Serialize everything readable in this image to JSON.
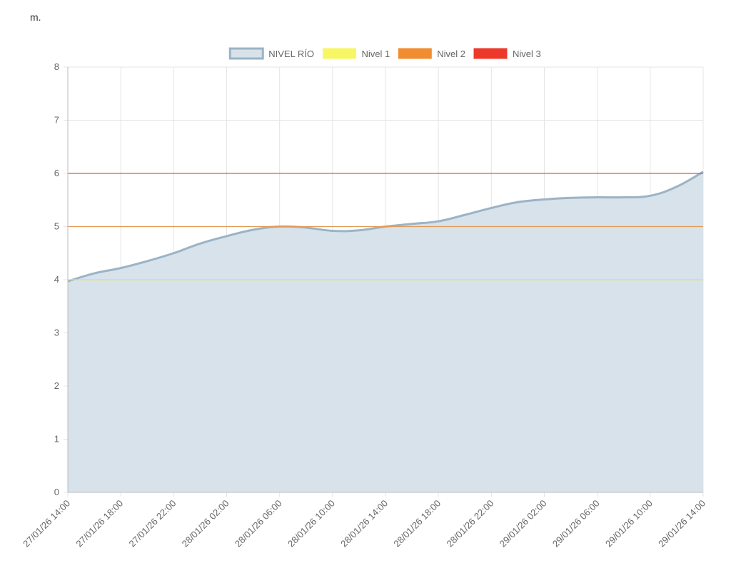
{
  "unit_label": "m.",
  "chart_data": {
    "type": "line",
    "ylim": [
      0,
      8
    ],
    "y_ticks": [
      0,
      1,
      2,
      3,
      4,
      5,
      6,
      7,
      8
    ],
    "grid": true,
    "legend_position": "top",
    "x_tick_labels": [
      "27/01/26 14:00",
      "27/01/26 18:00",
      "27/01/26 22:00",
      "28/01/26 02:00",
      "28/01/26 06:00",
      "28/01/26 10:00",
      "28/01/26 14:00",
      "28/01/26 18:00",
      "28/01/26 22:00",
      "29/01/26 02:00",
      "29/01/26 06:00",
      "29/01/26 10:00",
      "29/01/26 14:00"
    ],
    "x_hours_start": "27/01/26 14:00",
    "series": [
      {
        "name": "NIVEL RÍO",
        "kind": "area",
        "color": "#9bb3c6",
        "fill": "#d7e2ea",
        "x": [
          0,
          2,
          4,
          6,
          8,
          10,
          12,
          14,
          16,
          18,
          20,
          22,
          24,
          26,
          28,
          30,
          32,
          34,
          36,
          38,
          40,
          42,
          44,
          46,
          48
        ],
        "values": [
          3.97,
          4.12,
          4.22,
          4.35,
          4.5,
          4.68,
          4.82,
          4.94,
          5.0,
          4.98,
          4.92,
          4.93,
          5.0,
          5.05,
          5.1,
          5.22,
          5.35,
          5.46,
          5.51,
          5.54,
          5.55,
          5.55,
          5.58,
          5.75,
          6.03
        ]
      },
      {
        "name": "Nivel 1",
        "kind": "threshold",
        "color": "#f7f766",
        "line_color": "#e0e06a",
        "value": 4
      },
      {
        "name": "Nivel 2",
        "kind": "threshold",
        "color": "#f08c32",
        "line_color": "#e29a56",
        "value": 5
      },
      {
        "name": "Nivel 3",
        "kind": "threshold",
        "color": "#ec3a2a",
        "line_color": "#e0544a",
        "value": 6
      }
    ]
  }
}
